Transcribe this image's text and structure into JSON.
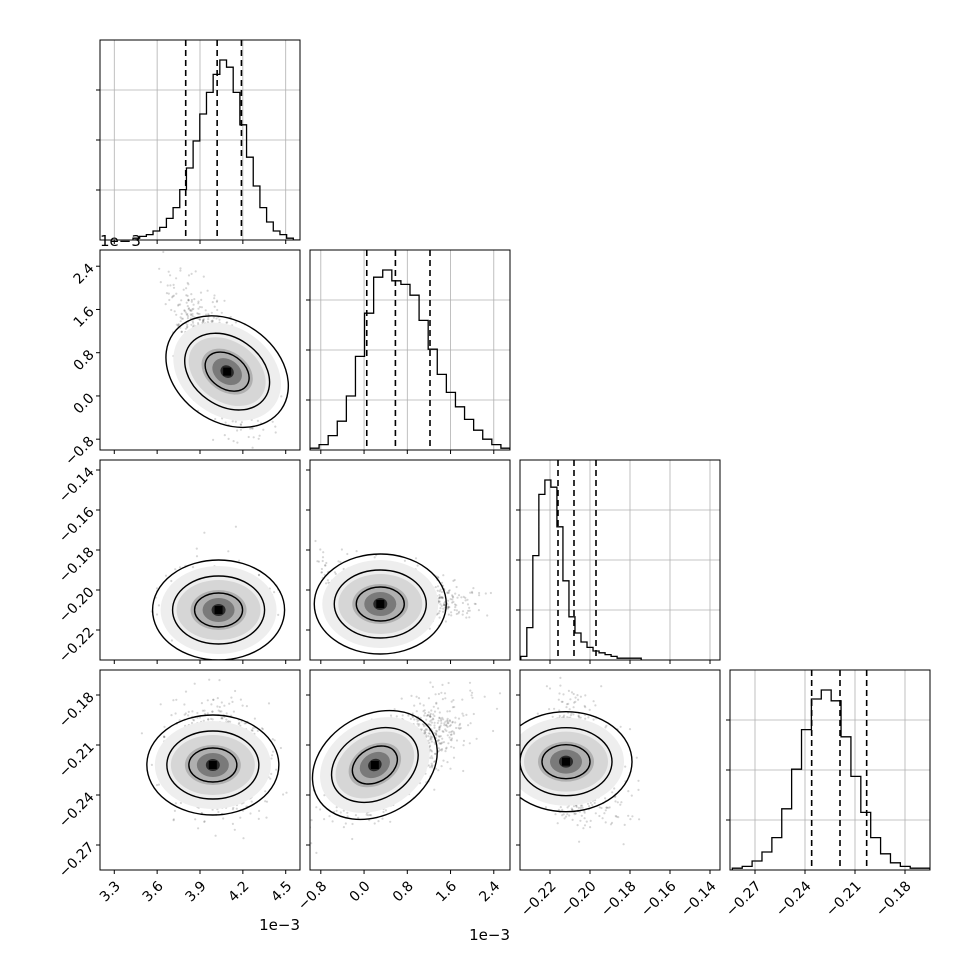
{
  "chart_data": {
    "type": "corner",
    "title": "",
    "n_params": 4,
    "grid": true,
    "quantiles": [
      0.16,
      0.5,
      0.84
    ],
    "params": [
      {
        "index": 0,
        "range": [
          3.2,
          4.6
        ],
        "ticks": [
          3.3,
          3.6,
          3.9,
          4.2,
          4.5
        ],
        "tick_labels": [
          "3.3",
          "3.6",
          "3.9",
          "4.2",
          "4.5"
        ],
        "offset_text": "1e−3",
        "mean": 4.02,
        "sd": 0.155,
        "quantile_values": [
          3.8,
          4.02,
          4.19
        ]
      },
      {
        "index": 1,
        "range": [
          -1.0,
          2.7
        ],
        "ticks": [
          -0.8,
          0.0,
          0.8,
          1.6,
          2.4
        ],
        "tick_labels": [
          "−0.8",
          "0.0",
          "0.8",
          "1.6",
          "2.4"
        ],
        "offset_text": "1e−3",
        "mean": 0.6,
        "sd": 0.6,
        "quantile_values": [
          0.05,
          0.58,
          1.22
        ]
      },
      {
        "index": 2,
        "range": [
          -0.235,
          -0.135
        ],
        "ticks": [
          -0.22,
          -0.2,
          -0.18,
          -0.16,
          -0.14
        ],
        "tick_labels": [
          "−0.22",
          "−0.20",
          "−0.18",
          "−0.16",
          "−0.14"
        ],
        "offset_text": "",
        "mean": -0.208,
        "sd": 0.007,
        "quantile_values": [
          -0.216,
          -0.208,
          -0.197
        ]
      },
      {
        "index": 3,
        "range": [
          -0.285,
          -0.165
        ],
        "ticks": [
          -0.27,
          -0.24,
          -0.21,
          -0.18
        ],
        "tick_labels": [
          "−0.27",
          "−0.24",
          "−0.21",
          "−0.18"
        ],
        "offset_text": "",
        "mean": -0.219,
        "sd": 0.017,
        "quantile_values": [
          -0.236,
          -0.219,
          -0.203
        ]
      }
    ],
    "diagonal_hist_counts": [
      [
        1,
        2,
        3,
        5,
        7,
        12,
        18,
        28,
        40,
        55,
        70,
        82,
        92,
        100,
        96,
        82,
        64,
        46,
        30,
        18,
        10,
        5,
        3,
        1,
        0
      ],
      [
        1,
        3,
        8,
        16,
        30,
        52,
        76,
        96,
        100,
        94,
        92,
        86,
        72,
        56,
        42,
        32,
        24,
        17,
        11,
        6,
        3,
        1
      ],
      [
        2,
        18,
        58,
        92,
        100,
        96,
        74,
        44,
        24,
        15,
        10,
        7,
        5,
        4,
        3,
        2,
        1,
        1,
        1,
        1
      ],
      [
        1,
        2,
        5,
        10,
        18,
        34,
        56,
        78,
        95,
        100,
        94,
        74,
        52,
        32,
        18,
        9,
        4,
        2,
        1,
        1
      ]
    ],
    "peaks_2d": [
      {
        "row": 1,
        "col": 0,
        "x": 4.09,
        "y": 0.45
      },
      {
        "row": 2,
        "col": 0,
        "x": 4.03,
        "y": -0.21
      },
      {
        "row": 2,
        "col": 1,
        "x": 0.3,
        "y": -0.207
      },
      {
        "row": 3,
        "col": 0,
        "x": 3.99,
        "y": -0.222
      },
      {
        "row": 3,
        "col": 1,
        "x": 0.2,
        "y": -0.222
      },
      {
        "row": 3,
        "col": 2,
        "x": -0.212,
        "y": -0.22
      }
    ]
  }
}
